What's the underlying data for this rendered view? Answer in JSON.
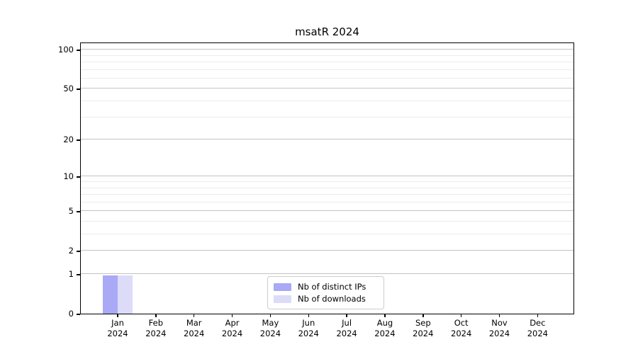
{
  "title": "msatR 2024",
  "chart_data": {
    "type": "bar",
    "title": "msatR 2024",
    "categories": [
      "Jan",
      "Feb",
      "Mar",
      "Apr",
      "May",
      "Jun",
      "Jul",
      "Aug",
      "Sep",
      "Oct",
      "Nov",
      "Dec"
    ],
    "category_year": "2024",
    "series": [
      {
        "name": "Nb of distinct IPs",
        "color": "#a9a9f6",
        "values": [
          1,
          0,
          0,
          0,
          0,
          0,
          0,
          0,
          0,
          0,
          0,
          0
        ]
      },
      {
        "name": "Nb of downloads",
        "color": "#dcdcf9",
        "values": [
          1,
          0,
          0,
          0,
          0,
          0,
          0,
          0,
          0,
          0,
          0,
          0
        ]
      }
    ],
    "xlabel": "",
    "ylabel": "",
    "yscale": "log1p",
    "ylim": [
      0,
      115
    ],
    "yticks": [
      0,
      1,
      2,
      5,
      10,
      20,
      50,
      100
    ],
    "yticks_minor": [
      3,
      4,
      6,
      7,
      8,
      9,
      30,
      40,
      60,
      70,
      80,
      90
    ],
    "grid": true,
    "legend_position": "inside lower center",
    "palette": {
      "major_grid": "#c3c3c3",
      "minor_grid": "#ececec",
      "spine": "#000000",
      "legend_border": "#cccccc",
      "background": "#ffffff"
    }
  }
}
